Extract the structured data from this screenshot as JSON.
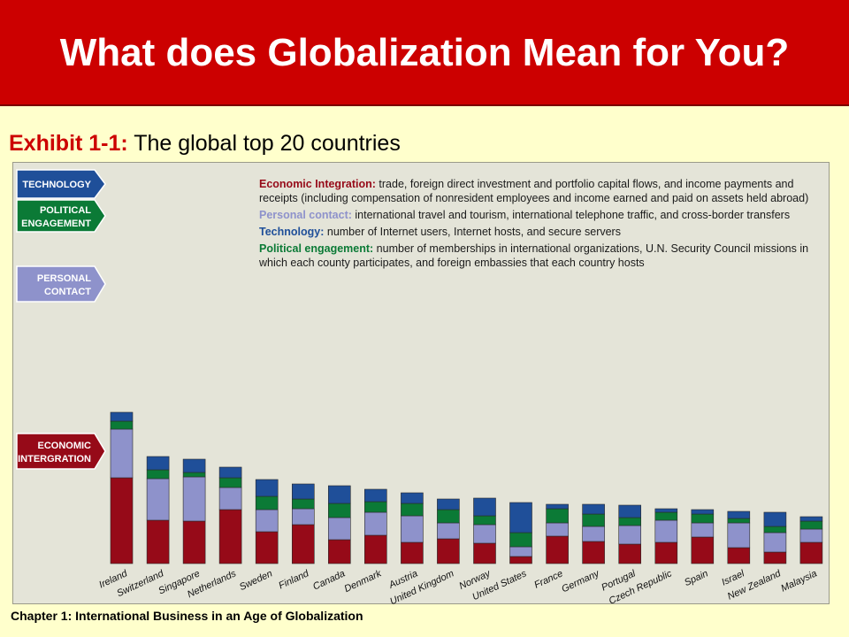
{
  "header": {
    "title": "What does Globalization Mean for You?"
  },
  "exhibit": {
    "label": "Exhibit 1-1:",
    "caption": "The global top 20 countries"
  },
  "footer": {
    "text": "Chapter 1:  International Business in an Age of Globalization"
  },
  "legend": {
    "items": [
      {
        "key": "economic",
        "term": "Economic Integration:",
        "lines": [
          " trade, foreign direct investment and portfolio capital flows, and income payments and",
          "receipts (including compensation of nonresident employees and income earned and paid on assets held abroad)"
        ]
      },
      {
        "key": "personal",
        "term": "Personal contact:",
        "lines": [
          " international travel and tourism, international telephone traffic, and cross-border transfers"
        ]
      },
      {
        "key": "technology",
        "term": "Technology:",
        "lines": [
          " number of Internet users, Internet hosts, and secure servers"
        ]
      },
      {
        "key": "political",
        "term": "Political engagement:",
        "lines": [
          " number of memberships in international organizations, U.N. Security Council missions in",
          "which each county participates, and foreign embassies that each country hosts"
        ]
      }
    ]
  },
  "colors": {
    "economic": "#960a18",
    "personal": "#8e92cb",
    "political": "#0b7a36",
    "technology": "#1f4f99",
    "title_bar": "#cc0000",
    "background": "#ffffcc"
  },
  "chart_data": {
    "type": "bar",
    "stacked": true,
    "categories": [
      "Ireland",
      "Switzerland",
      "Singapore",
      "Netherlands",
      "Sweden",
      "Finland",
      "Canada",
      "Denmark",
      "Austria",
      "United Kingdom",
      "Norway",
      "United States",
      "France",
      "Germany",
      "Portugal",
      "Czech Republic",
      "Spain",
      "Israel",
      "New Zealand",
      "Malaysia"
    ],
    "series": [
      {
        "key": "economic",
        "name": "ECONOMIC INTERGRATION",
        "values": [
          97,
          49,
          48,
          61,
          36,
          44,
          27,
          32,
          24,
          28,
          23,
          8,
          31,
          25,
          22,
          24,
          30,
          18,
          13,
          24
        ]
      },
      {
        "key": "personal",
        "name": "PERSONAL CONTACT",
        "values": [
          55,
          47,
          50,
          25,
          25,
          18,
          25,
          26,
          30,
          18,
          21,
          11,
          15,
          17,
          21,
          25,
          16,
          28,
          22,
          15
        ]
      },
      {
        "key": "political",
        "name": "POLITICAL ENGAGEMENT",
        "values": [
          9,
          10,
          5,
          11,
          15,
          11,
          16,
          12,
          14,
          15,
          10,
          16,
          16,
          14,
          9,
          9,
          10,
          5,
          7,
          9
        ]
      },
      {
        "key": "technology",
        "name": "TECHNOLOGY",
        "values": [
          10,
          15,
          15,
          12,
          19,
          17,
          20,
          14,
          12,
          12,
          20,
          34,
          5,
          11,
          14,
          4,
          5,
          8,
          16,
          5
        ]
      }
    ],
    "ylim": [
      0,
      175
    ],
    "grid": false,
    "legend_position": "top-right"
  }
}
